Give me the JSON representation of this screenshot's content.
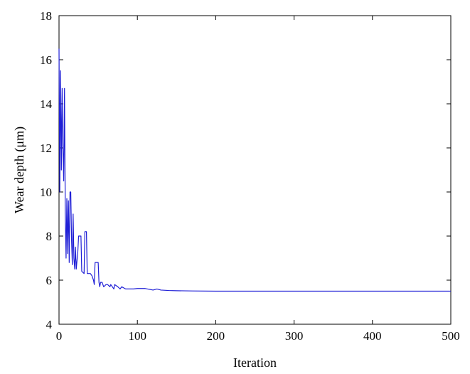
{
  "chart_data": {
    "type": "line",
    "title": "",
    "xlabel": "Iteration",
    "ylabel": "Wear depth (μm)",
    "xlim": [
      0,
      500
    ],
    "ylim": [
      4,
      18
    ],
    "xticks": [
      0,
      100,
      200,
      300,
      400,
      500
    ],
    "yticks": [
      4,
      6,
      8,
      10,
      12,
      14,
      16,
      18
    ],
    "grid": false,
    "legend": "none",
    "series": [
      {
        "color": "#1f1fd6",
        "points": [
          [
            0,
            16.5
          ],
          [
            1,
            10.0
          ],
          [
            2,
            15.5
          ],
          [
            3,
            11.0
          ],
          [
            4,
            14.7
          ],
          [
            5,
            12.0
          ],
          [
            6,
            10.5
          ],
          [
            7,
            14.7
          ],
          [
            8,
            9.0
          ],
          [
            9,
            7.0
          ],
          [
            10,
            9.7
          ],
          [
            11,
            7.2
          ],
          [
            12,
            9.6
          ],
          [
            13,
            6.8
          ],
          [
            14,
            10.0
          ],
          [
            15,
            10.0
          ],
          [
            16,
            7.8
          ],
          [
            17,
            6.7
          ],
          [
            18,
            9.0
          ],
          [
            19,
            7.0
          ],
          [
            20,
            6.5
          ],
          [
            21,
            7.5
          ],
          [
            22,
            6.5
          ],
          [
            24,
            7.3
          ],
          [
            25,
            8.0
          ],
          [
            28,
            8.0
          ],
          [
            29,
            6.4
          ],
          [
            32,
            6.3
          ],
          [
            33,
            8.2
          ],
          [
            35,
            8.2
          ],
          [
            36,
            6.3
          ],
          [
            40,
            6.3
          ],
          [
            42,
            6.2
          ],
          [
            44,
            6.0
          ],
          [
            45,
            5.8
          ],
          [
            46,
            6.8
          ],
          [
            50,
            6.8
          ],
          [
            51,
            5.9
          ],
          [
            52,
            5.7
          ],
          [
            53,
            5.9
          ],
          [
            55,
            5.9
          ],
          [
            57,
            5.7
          ],
          [
            60,
            5.8
          ],
          [
            62,
            5.8
          ],
          [
            65,
            5.7
          ],
          [
            66,
            5.8
          ],
          [
            70,
            5.6
          ],
          [
            71,
            5.8
          ],
          [
            75,
            5.7
          ],
          [
            78,
            5.6
          ],
          [
            80,
            5.7
          ],
          [
            85,
            5.6
          ],
          [
            95,
            5.6
          ],
          [
            100,
            5.62
          ],
          [
            110,
            5.62
          ],
          [
            120,
            5.55
          ],
          [
            125,
            5.6
          ],
          [
            130,
            5.55
          ],
          [
            140,
            5.53
          ],
          [
            150,
            5.52
          ],
          [
            170,
            5.51
          ],
          [
            200,
            5.5
          ],
          [
            300,
            5.5
          ],
          [
            400,
            5.5
          ],
          [
            500,
            5.5
          ]
        ]
      }
    ]
  }
}
